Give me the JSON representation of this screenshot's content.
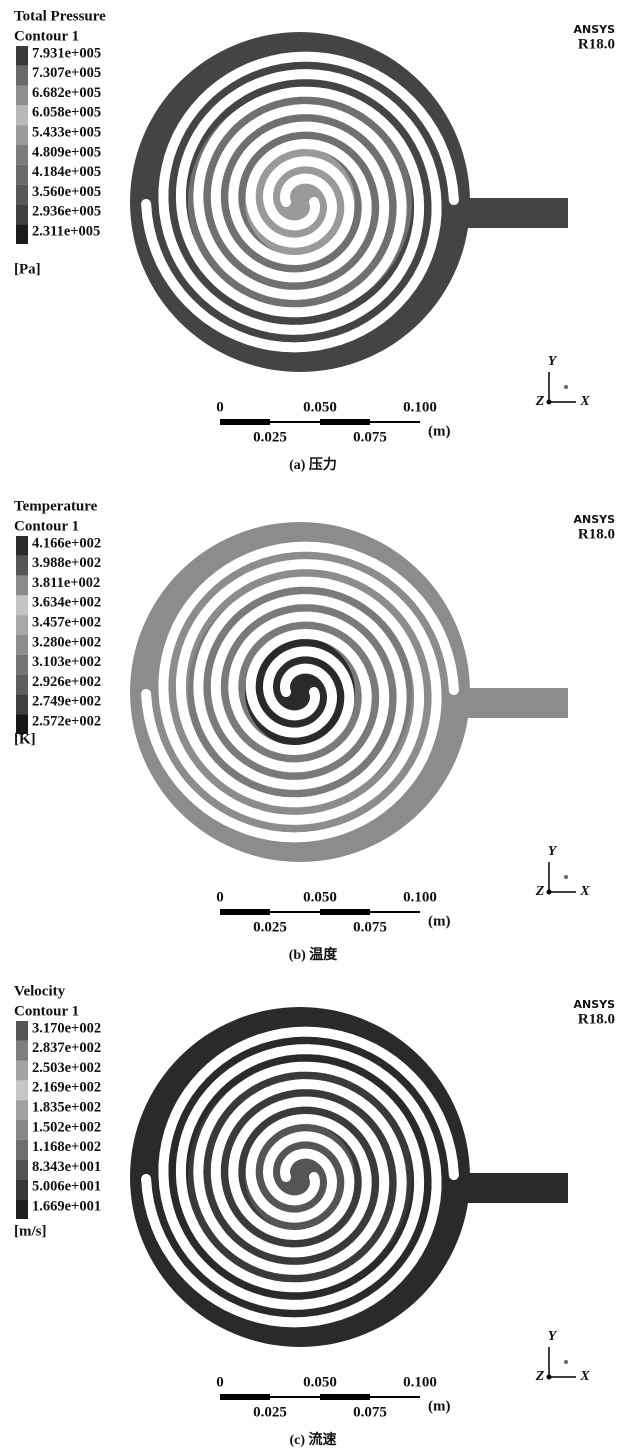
{
  "panels": [
    {
      "title": "Total Pressure",
      "subtitle": "Contour 1",
      "legend": [
        "7.931e+005",
        "7.307e+005",
        "6.682e+005",
        "6.058e+005",
        "5.433e+005",
        "4.809e+005",
        "4.184e+005",
        "3.560e+005",
        "2.936e+005",
        "2.311e+005"
      ],
      "unit": "[Pa]",
      "brand": "ANSYS",
      "version": "R18.0",
      "scale": {
        "major": [
          "0",
          "0.050",
          "0.100"
        ],
        "minor": [
          "0.025",
          "0.075"
        ],
        "unit": "(m)"
      },
      "axes": {
        "y": "Y",
        "z": "Z",
        "x": "X"
      },
      "caption": "(a) 压力"
    },
    {
      "title": "Temperature",
      "subtitle": "Contour 1",
      "legend": [
        "4.166e+002",
        "3.988e+002",
        "3.811e+002",
        "3.634e+002",
        "3.457e+002",
        "3.280e+002",
        "3.103e+002",
        "2.926e+002",
        "2.749e+002",
        "2.572e+002"
      ],
      "unit": "[K]",
      "brand": "ANSYS",
      "version": "R18.0",
      "scale": {
        "major": [
          "0",
          "0.050",
          "0.100"
        ],
        "minor": [
          "0.025",
          "0.075"
        ],
        "unit": "(m)"
      },
      "axes": {
        "y": "Y",
        "z": "Z",
        "x": "X"
      },
      "caption": "(b) 温度"
    },
    {
      "title": "Velocity",
      "subtitle": "Contour 1",
      "legend": [
        "3.170e+002",
        "2.837e+002",
        "2.503e+002",
        "2.169e+002",
        "1.835e+002",
        "1.502e+002",
        "1.168e+002",
        "8.343e+001",
        "5.006e+001",
        "1.669e+001"
      ],
      "unit": "[m/s]",
      "brand": "ANSYS",
      "version": "R18.0",
      "scale": {
        "major": [
          "0",
          "0.050",
          "0.100"
        ],
        "minor": [
          "0.025",
          "0.075"
        ],
        "unit": "(m)"
      },
      "axes": {
        "y": "Y",
        "z": "Z",
        "x": "X"
      },
      "caption": "(c) 流速"
    }
  ]
}
